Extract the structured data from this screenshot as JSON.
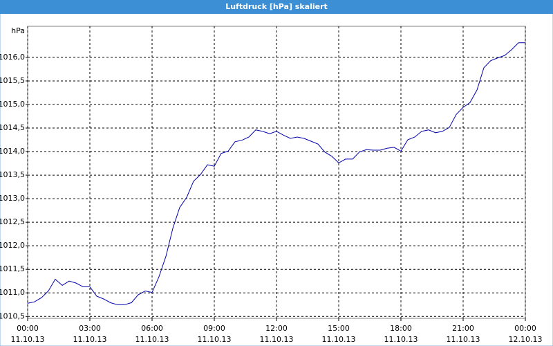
{
  "chart_data": {
    "type": "line",
    "title": "Luftdruck [hPa] skaliert",
    "y_label": "hPa",
    "x": [
      0,
      0.33,
      0.67,
      1,
      1.33,
      1.67,
      2,
      2.33,
      2.67,
      3,
      3.33,
      3.67,
      4,
      4.33,
      4.67,
      5,
      5.33,
      5.67,
      6,
      6.33,
      6.67,
      7,
      7.33,
      7.67,
      8,
      8.33,
      8.67,
      9,
      9.33,
      9.67,
      10,
      10.33,
      10.67,
      11,
      11.33,
      11.67,
      12,
      12.33,
      12.67,
      13,
      13.33,
      13.67,
      14,
      14.33,
      14.67,
      15,
      15.33,
      15.67,
      16,
      16.33,
      16.67,
      17,
      17.33,
      17.67,
      18,
      18.33,
      18.67,
      19,
      19.33,
      19.67,
      20,
      20.33,
      20.67,
      21,
      21.33,
      21.67,
      22,
      22.33,
      22.67,
      23,
      23.33,
      23.67,
      24
    ],
    "series": [
      {
        "color": "#0000a8",
        "values": [
          1010.78,
          1010.81,
          1010.9,
          1011.04,
          1011.29,
          1011.16,
          1011.25,
          1011.21,
          1011.13,
          1011.13,
          1010.93,
          1010.87,
          1010.79,
          1010.75,
          1010.75,
          1010.79,
          1010.96,
          1011.04,
          1011.01,
          1011.34,
          1011.78,
          1012.37,
          1012.81,
          1013.03,
          1013.37,
          1013.51,
          1013.72,
          1013.69,
          1013.96,
          1014.01,
          1014.21,
          1014.24,
          1014.31,
          1014.46,
          1014.43,
          1014.38,
          1014.43,
          1014.35,
          1014.28,
          1014.31,
          1014.28,
          1014.22,
          1014.16,
          1013.99,
          1013.9,
          1013.76,
          1013.84,
          1013.84,
          1013.99,
          1014.04,
          1014.03,
          1014.03,
          1014.07,
          1014.09,
          1014.01,
          1014.25,
          1014.31,
          1014.43,
          1014.46,
          1014.4,
          1014.43,
          1014.51,
          1014.79,
          1014.94,
          1015.04,
          1015.31,
          1015.78,
          1015.93,
          1015.99,
          1016.04,
          1016.16,
          1016.31,
          1016.31
        ]
      }
    ],
    "xlim": [
      0,
      24
    ],
    "xticks": [
      {
        "value": 0,
        "label": "00:00",
        "date": "11.10.13"
      },
      {
        "value": 3,
        "label": "03:00",
        "date": "11.10.13"
      },
      {
        "value": 6,
        "label": "06:00",
        "date": "11.10.13"
      },
      {
        "value": 9,
        "label": "09:00",
        "date": "11.10.13"
      },
      {
        "value": 12,
        "label": "12:00",
        "date": "11.10.13"
      },
      {
        "value": 15,
        "label": "15:00",
        "date": "11.10.13"
      },
      {
        "value": 18,
        "label": "18:00",
        "date": "11.10.13"
      },
      {
        "value": 21,
        "label": "21:00",
        "date": "11.10.13"
      },
      {
        "value": 24,
        "label": "00:00",
        "date": "12.10.13"
      }
    ],
    "ylim": [
      1010.46,
      1016.66
    ],
    "yticks": [
      {
        "value": 1010.5,
        "label": "1010,5"
      },
      {
        "value": 1011,
        "label": "1011,0"
      },
      {
        "value": 1011.5,
        "label": "1011,5"
      },
      {
        "value": 1012,
        "label": "1012,0"
      },
      {
        "value": 1012.5,
        "label": "1012,5"
      },
      {
        "value": 1013,
        "label": "1013,0"
      },
      {
        "value": 1013.5,
        "label": "1013,5"
      },
      {
        "value": 1014,
        "label": "1014,0"
      },
      {
        "value": 1014.5,
        "label": "1014,5"
      },
      {
        "value": 1015,
        "label": "1015,0"
      },
      {
        "value": 1015.5,
        "label": "1015,5"
      },
      {
        "value": 1016,
        "label": "1016,0"
      }
    ],
    "grid": true
  }
}
